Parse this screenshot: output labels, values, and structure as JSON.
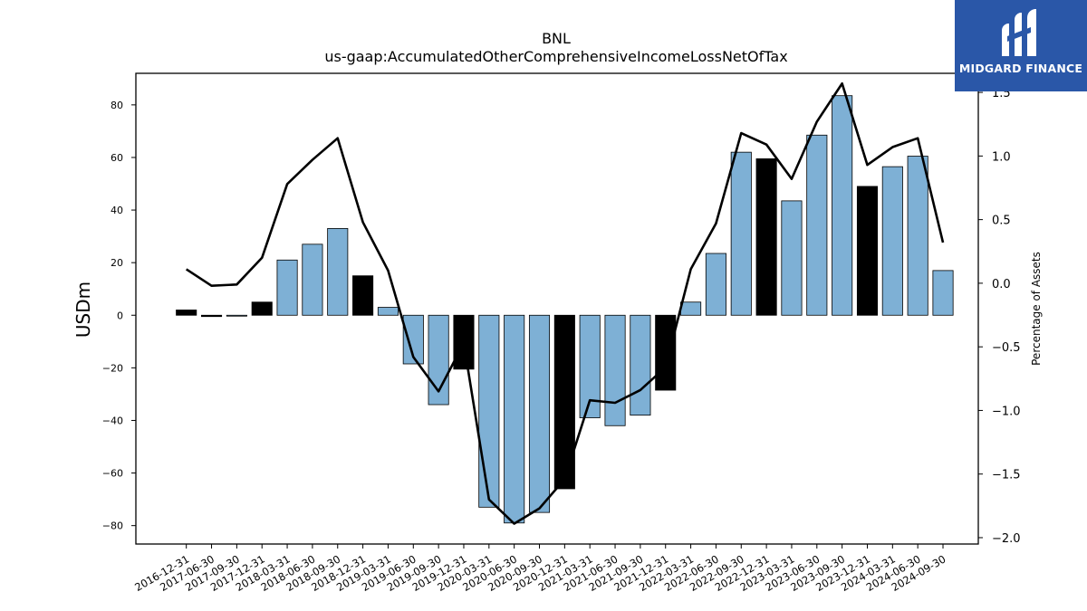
{
  "brand": {
    "name": "MIDGARD FINANCE",
    "color": "#2a57a8"
  },
  "chart_data": {
    "type": "bar",
    "title": "BNL",
    "subtitle": "us-gaap:AccumulatedOtherComprehensiveIncomeLossNetOfTax",
    "ylabel": "USDm",
    "y2label": "Percentage of Assets",
    "ylim": [
      -87,
      92
    ],
    "y2lim": [
      -2.05,
      1.65
    ],
    "yticks": [
      -80,
      -60,
      -40,
      -20,
      0,
      20,
      40,
      60,
      80
    ],
    "y2ticks": [
      -2.0,
      -1.5,
      -1.0,
      -0.5,
      0.0,
      0.5,
      1.0,
      1.5
    ],
    "categories": [
      "2016-12-31",
      "2017-06-30",
      "2017-09-30",
      "2017-12-31",
      "2018-03-31",
      "2018-06-30",
      "2018-09-30",
      "2018-12-31",
      "2019-03-31",
      "2019-06-30",
      "2019-09-30",
      "2019-12-31",
      "2020-03-31",
      "2020-06-30",
      "2020-09-30",
      "2020-12-31",
      "2021-03-31",
      "2021-06-30",
      "2021-09-30",
      "2021-12-31",
      "2022-03-31",
      "2022-06-30",
      "2022-09-30",
      "2022-12-31",
      "2023-03-31",
      "2023-06-30",
      "2023-09-30",
      "2023-12-31",
      "2024-03-31",
      "2024-06-30",
      "2024-09-30"
    ],
    "series": [
      {
        "type": "bar",
        "values": [
          2,
          -0.5,
          -0.3,
          5,
          21,
          27,
          33,
          15,
          3,
          -18.5,
          -34,
          -20.5,
          -73,
          -79,
          -75,
          -66,
          -39,
          -42,
          -38,
          -28.5,
          5,
          23.5,
          62,
          59.5,
          43.5,
          68.5,
          83.5,
          49,
          56.5,
          60.5,
          17
        ],
        "highlight": [
          true,
          true,
          false,
          true,
          false,
          false,
          false,
          true,
          false,
          false,
          false,
          true,
          false,
          false,
          false,
          true,
          false,
          false,
          false,
          true,
          false,
          false,
          false,
          true,
          false,
          false,
          false,
          true,
          false,
          false,
          false
        ],
        "color": "#7eb0d5",
        "highlight_color": "#000000"
      },
      {
        "type": "line",
        "axis": "right",
        "values": [
          0.11,
          -0.02,
          -0.01,
          0.2,
          0.78,
          0.97,
          1.14,
          0.48,
          0.1,
          -0.58,
          -0.85,
          -0.47,
          -1.7,
          -1.89,
          -1.77,
          -1.54,
          -0.92,
          -0.94,
          -0.84,
          -0.66,
          0.11,
          0.47,
          1.18,
          1.09,
          0.82,
          1.27,
          1.57,
          0.93,
          1.07,
          1.14,
          0.32
        ],
        "color": "#000000"
      }
    ]
  }
}
